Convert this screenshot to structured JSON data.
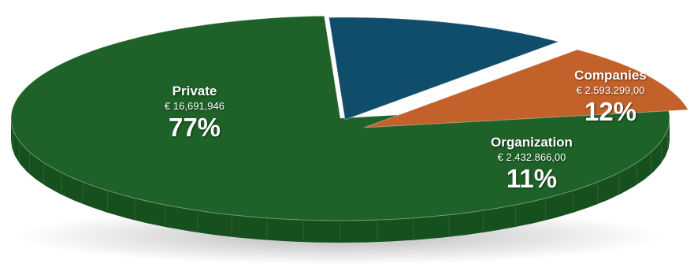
{
  "chart_data": {
    "type": "pie",
    "slices": [
      {
        "name": "Private",
        "value_label": "€ 16,691,946",
        "value": 16691946,
        "percent_label": "77%",
        "percent": 77,
        "color": "#1e6129",
        "side_color": "#17501f"
      },
      {
        "name": "Companies",
        "value_label": "€ 2.593.299,00",
        "value": 2593299,
        "percent_label": "12%",
        "percent": 12,
        "color": "#0f4d6b",
        "side_color": "#0b3c54"
      },
      {
        "name": "Organization",
        "value_label": "€ 2.432.866,00",
        "value": 2432866,
        "percent_label": "11%",
        "percent": 11,
        "color": "#c3612b",
        "side_color": "#a84f20"
      }
    ]
  }
}
